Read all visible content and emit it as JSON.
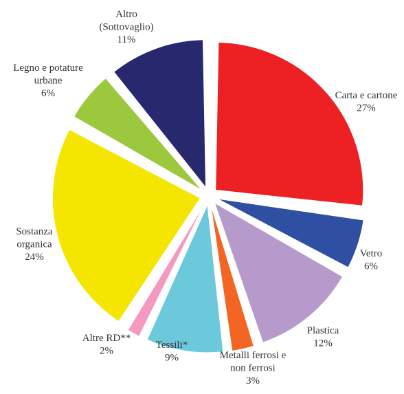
{
  "chart_data": {
    "type": "pie",
    "title": "",
    "slices": [
      {
        "name": "Carta e cartone",
        "label_lines": [
          "Carta e cartone"
        ],
        "percent_label": "27%",
        "value": 27,
        "color": "#ED2024"
      },
      {
        "name": "Vetro",
        "label_lines": [
          "Vetro"
        ],
        "percent_label": "6%",
        "value": 6,
        "color": "#2F50A2"
      },
      {
        "name": "Plastica",
        "label_lines": [
          "Plastica"
        ],
        "percent_label": "12%",
        "value": 12,
        "color": "#B69ACB"
      },
      {
        "name": "Metalli ferrosi e non ferrosi",
        "label_lines": [
          "Metalli ferrosi e",
          "non ferrosi"
        ],
        "percent_label": "3%",
        "value": 3,
        "color": "#F26522"
      },
      {
        "name": "Tessili*",
        "label_lines": [
          "Tessili*"
        ],
        "percent_label": "9%",
        "value": 9,
        "color": "#6CC8DB"
      },
      {
        "name": "Altre RD**",
        "label_lines": [
          "Altre RD**"
        ],
        "percent_label": "2%",
        "value": 2,
        "color": "#F49AC1"
      },
      {
        "name": "Sostanza organica",
        "label_lines": [
          "Sostanza",
          "organica"
        ],
        "percent_label": "24%",
        "value": 24,
        "color": "#F4E600"
      },
      {
        "name": "Legno e potature urbane",
        "label_lines": [
          "Legno e potature",
          "urbane"
        ],
        "percent_label": "6%",
        "value": 6,
        "color": "#9BC83D"
      },
      {
        "name": "Altro (Sottovaglio)",
        "label_lines": [
          "Altro",
          "(Sottovaglio)"
        ],
        "percent_label": "11%",
        "value": 11,
        "color": "#27286E"
      }
    ]
  }
}
